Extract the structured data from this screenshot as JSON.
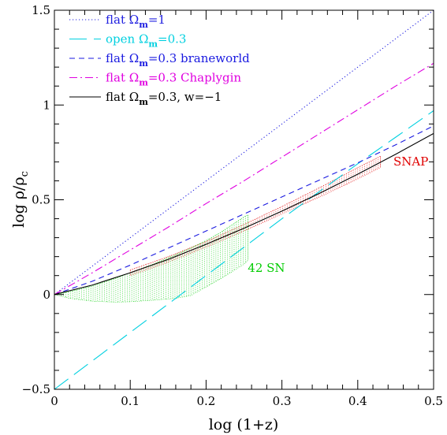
{
  "chart_data": {
    "type": "line",
    "xlabel": "log (1+z)",
    "ylabel": "log ρ/ρ",
    "ylabel_sub": "c",
    "xlim": [
      0,
      0.5
    ],
    "ylim": [
      -0.5,
      1.5
    ],
    "x_ticks": [
      "0",
      "0.1",
      "0.2",
      "0.3",
      "0.4",
      "0.5"
    ],
    "y_ticks": [
      "−0.5",
      "0",
      "0.5",
      "1",
      "1.5"
    ],
    "grid": false,
    "legend_position": "top-left",
    "series": [
      {
        "name": "flat Ωm=1",
        "legend_parts": [
          "flat Ω",
          "m",
          "=1"
        ],
        "color": "#2020e0",
        "style": "dotted",
        "x": [
          0,
          0.05,
          0.1,
          0.15,
          0.2,
          0.25,
          0.3,
          0.35,
          0.4,
          0.45,
          0.5
        ],
        "y": [
          0,
          0.15,
          0.3,
          0.45,
          0.6,
          0.75,
          0.9,
          1.05,
          1.2,
          1.35,
          1.5
        ]
      },
      {
        "name": "open Ωm=0.3",
        "legend_parts": [
          "open Ω",
          "m",
          "=0.3"
        ],
        "color": "#00d0e0",
        "style": "longdash",
        "x": [
          0,
          0.05,
          0.1,
          0.15,
          0.2,
          0.25,
          0.3,
          0.35,
          0.4,
          0.45,
          0.5
        ],
        "y": [
          -0.5,
          -0.35,
          -0.2,
          -0.05,
          0.1,
          0.25,
          0.4,
          0.545,
          0.69,
          0.83,
          0.97
        ]
      },
      {
        "name": "flat Ωm=0.3 braneworld",
        "legend_parts": [
          "flat Ω",
          "m",
          "=0.3 braneworld"
        ],
        "color": "#1a1ae0",
        "style": "dashed",
        "x": [
          0,
          0.05,
          0.1,
          0.15,
          0.2,
          0.25,
          0.3,
          0.35,
          0.4,
          0.45,
          0.5
        ],
        "y": [
          0,
          0.07,
          0.155,
          0.245,
          0.335,
          0.425,
          0.515,
          0.605,
          0.695,
          0.79,
          0.89
        ]
      },
      {
        "name": "flat Ωm=0.3 Chaplygin",
        "legend_parts": [
          "flat Ω",
          "m",
          "=0.3 Chaplygin"
        ],
        "color": "#e000e0",
        "style": "dashdot",
        "x": [
          0,
          0.05,
          0.1,
          0.15,
          0.2,
          0.25,
          0.3,
          0.35,
          0.4,
          0.45,
          0.5
        ],
        "y": [
          0,
          0.115,
          0.235,
          0.355,
          0.48,
          0.6,
          0.725,
          0.85,
          0.975,
          1.1,
          1.22
        ]
      },
      {
        "name": "flat Ωm=0.3, w=−1",
        "legend_parts": [
          "flat Ω",
          "m",
          "=0.3,  w=−1"
        ],
        "color": "#000000",
        "style": "solid",
        "x": [
          0,
          0.05,
          0.1,
          0.15,
          0.2,
          0.25,
          0.3,
          0.35,
          0.4,
          0.45,
          0.5
        ],
        "y": [
          0,
          0.05,
          0.115,
          0.185,
          0.265,
          0.35,
          0.44,
          0.535,
          0.635,
          0.74,
          0.85
        ]
      }
    ],
    "bands": [
      {
        "label": "SNAP",
        "color": "#e00000",
        "x": [
          0.1,
          0.15,
          0.2,
          0.25,
          0.3,
          0.35,
          0.4,
          0.43
        ],
        "upper": [
          0.13,
          0.2,
          0.28,
          0.37,
          0.465,
          0.565,
          0.67,
          0.73
        ],
        "lower": [
          0.1,
          0.17,
          0.25,
          0.335,
          0.425,
          0.515,
          0.61,
          0.67
        ]
      },
      {
        "label": "42 SN",
        "color": "#00cc00",
        "x": [
          0,
          0.02,
          0.05,
          0.08,
          0.1,
          0.13,
          0.16,
          0.18,
          0.2,
          0.22,
          0.25,
          0.255
        ],
        "upper": [
          0,
          0.015,
          0.045,
          0.085,
          0.115,
          0.16,
          0.21,
          0.245,
          0.285,
          0.33,
          0.41,
          0.42
        ],
        "lower": [
          0,
          -0.02,
          -0.035,
          -0.04,
          -0.038,
          -0.03,
          -0.02,
          -0.005,
          0.04,
          0.085,
          0.16,
          0.18
        ]
      }
    ],
    "annotations": [
      {
        "text": "SNAP",
        "color": "#e00000",
        "x": 0.447,
        "y": 0.68
      },
      {
        "text": "42 SN",
        "color": "#00cc00",
        "x": 0.255,
        "y": 0.12
      }
    ]
  }
}
